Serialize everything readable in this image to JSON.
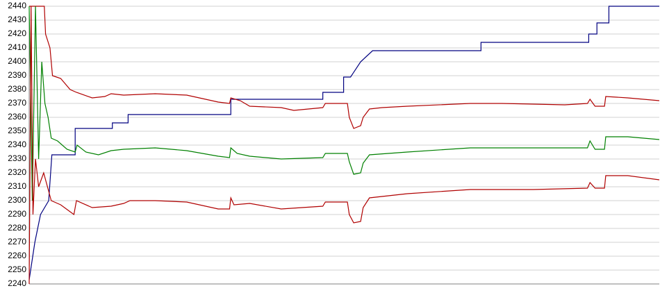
{
  "chart_data": {
    "type": "line",
    "xlim": [
      0,
      100
    ],
    "ylim": [
      2240,
      2440
    ],
    "yticks": [
      2240,
      2250,
      2260,
      2270,
      2280,
      2290,
      2300,
      2310,
      2320,
      2330,
      2340,
      2350,
      2360,
      2370,
      2380,
      2390,
      2400,
      2410,
      2420,
      2430,
      2440
    ],
    "grid": true,
    "series": [
      {
        "color": "#000080",
        "x": [
          0,
          0.9,
          1.8,
          3.1,
          3.6,
          7.3,
          7.3,
          13.2,
          13.2,
          15.7,
          15.7,
          32.0,
          32.0,
          46.6,
          46.6,
          49.9,
          49.9,
          51.0,
          52.6,
          54.5,
          71.7,
          71.7,
          88.8,
          88.8,
          90.1,
          90.1,
          92.0,
          92.0,
          100
        ],
        "values": [
          2243,
          2270,
          2290,
          2300,
          2333,
          2333,
          2352,
          2352,
          2356,
          2356,
          2362,
          2362,
          2373,
          2373,
          2378,
          2378,
          2389,
          2389,
          2400,
          2408,
          2408,
          2414,
          2414,
          2420,
          2420,
          2428,
          2428,
          2440,
          2440
        ]
      },
      {
        "color": "#b00000",
        "x": [
          0,
          2.4,
          2.6,
          3.3,
          3.7,
          5,
          6.5,
          7.5,
          10,
          12,
          13,
          15,
          20,
          25,
          30,
          31.8,
          32,
          33.5,
          35,
          40,
          42,
          46.6,
          47,
          50.5,
          50.8,
          51.5,
          52.6,
          53,
          54,
          56,
          60,
          70,
          75,
          85,
          88.6,
          89,
          89.8,
          91.3,
          91.5,
          95,
          100
        ],
        "values": [
          2440,
          2440,
          2420,
          2410,
          2390,
          2388,
          2380,
          2378,
          2374,
          2375,
          2377,
          2376,
          2377,
          2376,
          2371,
          2370,
          2374,
          2372,
          2368,
          2367,
          2365,
          2367,
          2370,
          2370,
          2360,
          2352,
          2354,
          2360,
          2366,
          2367,
          2368,
          2370,
          2370,
          2369,
          2370,
          2373,
          2368,
          2368,
          2375,
          2374,
          2372
        ]
      },
      {
        "color": "#008000",
        "x": [
          0,
          0.5,
          1,
          1.5,
          2,
          2.5,
          3,
          3.5,
          4.5,
          6,
          7.3,
          7.6,
          9,
          11,
          13,
          15,
          20,
          25,
          30,
          31.8,
          32,
          33,
          35,
          40,
          46.6,
          47,
          50.5,
          50.8,
          51.5,
          52.6,
          53,
          54,
          60,
          70,
          75,
          85,
          88.6,
          89,
          89.8,
          91.3,
          91.5,
          95,
          100
        ],
        "values": [
          2440,
          2300,
          2440,
          2330,
          2400,
          2370,
          2360,
          2345,
          2343,
          2337,
          2335,
          2340,
          2335,
          2333,
          2336,
          2337,
          2338,
          2336,
          2332,
          2331,
          2338,
          2334,
          2332,
          2330,
          2331,
          2334,
          2334,
          2328,
          2319,
          2320,
          2327,
          2333,
          2335,
          2338,
          2338,
          2338,
          2338,
          2343,
          2337,
          2337,
          2346,
          2346,
          2344
        ]
      },
      {
        "color": "#b00000",
        "x": [
          0,
          0.3,
          0.6,
          1,
          1.5,
          2.3,
          3.5,
          5,
          6.5,
          7.1,
          7.5,
          10,
          13,
          15,
          16,
          20,
          25,
          30,
          31.8,
          32,
          32.5,
          35,
          40,
          46.6,
          47,
          50.5,
          50.8,
          51.5,
          52.6,
          53,
          54,
          60,
          70,
          80,
          88.6,
          89,
          89.8,
          91.3,
          91.5,
          95,
          100
        ],
        "values": [
          2240,
          2440,
          2290,
          2330,
          2310,
          2320,
          2300,
          2297,
          2292,
          2290,
          2300,
          2295,
          2296,
          2298,
          2300,
          2300,
          2299,
          2294,
          2294,
          2302,
          2297,
          2298,
          2294,
          2296,
          2299,
          2299,
          2290,
          2284,
          2285,
          2295,
          2302,
          2305,
          2308,
          2308,
          2309,
          2313,
          2309,
          2309,
          2318,
          2318,
          2315
        ]
      }
    ]
  }
}
